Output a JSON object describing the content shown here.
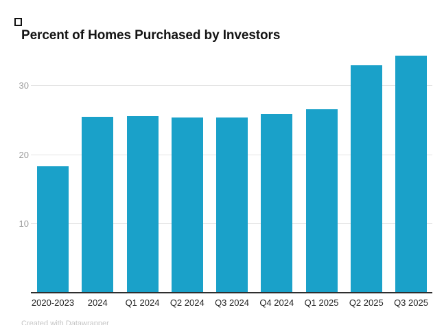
{
  "chart": {
    "title": "Percent of Homes Purchased by Investors",
    "credit": "Created with Datawrapper"
  },
  "chart_data": {
    "type": "bar",
    "title": "Percent of Homes Purchased by Investors",
    "categories": [
      "2020-2023",
      "2024",
      "Q1 2024",
      "Q2 2024",
      "Q3 2024",
      "Q4 2024",
      "Q1 2025",
      "Q2 2025",
      "Q3 2025"
    ],
    "values": [
      18.4,
      25.6,
      25.7,
      25.5,
      25.5,
      26.0,
      26.7,
      33.0,
      34.4
    ],
    "xlabel": "",
    "ylabel": "",
    "ylim": [
      0,
      36.5
    ],
    "yticks": [
      10,
      20,
      30
    ],
    "grid": true,
    "legend": "none",
    "bar_color": "#1aa1c9",
    "gridline_color": "#e3e3e3",
    "axis_line_color": "#2e2e2e",
    "ytick_color": "#9c9c9c",
    "xtick_color": "#212121"
  }
}
